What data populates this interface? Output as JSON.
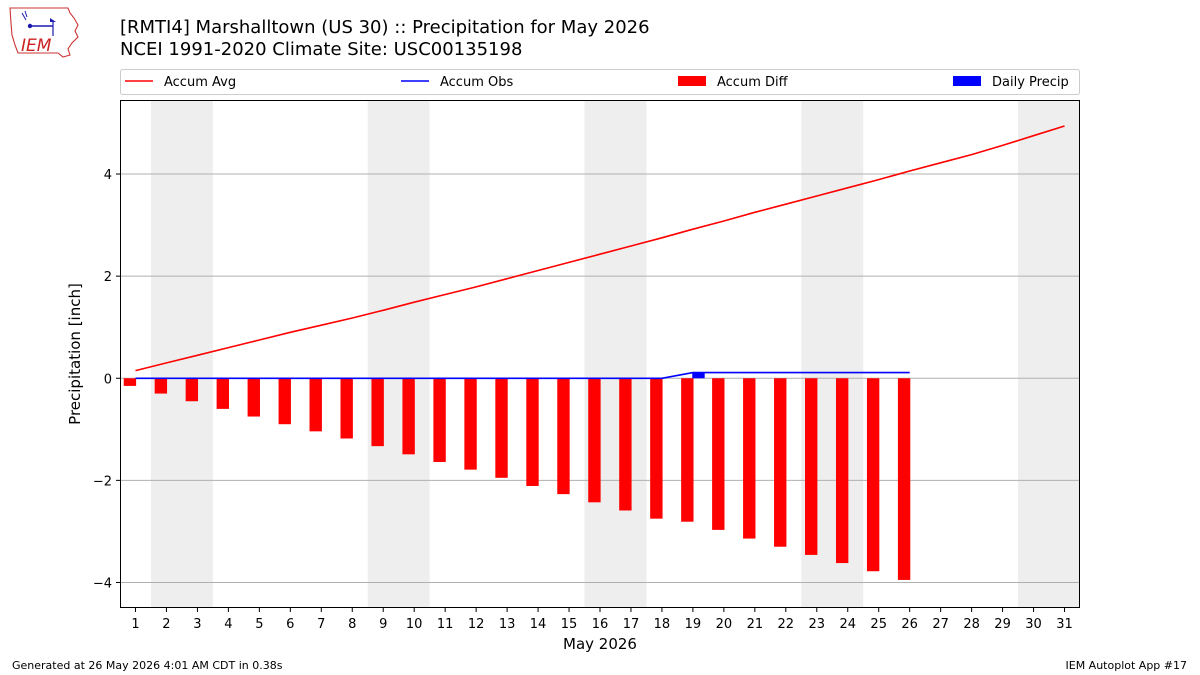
{
  "header": {
    "title": "[RMTI4] Marshalltown (US 30) :: Precipitation for May 2026",
    "subtitle": "NCEI 1991-2020 Climate Site: USC00135198"
  },
  "logo": {
    "text": "IEM"
  },
  "footer": {
    "generated": "Generated at 26 May 2026 4:01 AM CDT in 0.38s",
    "app": "IEM Autoplot App #17"
  },
  "chart_data": {
    "type": "bar",
    "xlabel": "May 2026",
    "ylabel": "Precipitation [inch]",
    "xlim": [
      0.5,
      31.5
    ],
    "ylim": [
      -4.5,
      5.45
    ],
    "yticks": [
      {
        "v": 4,
        "label": "4"
      },
      {
        "v": 2,
        "label": "2"
      },
      {
        "v": 0,
        "label": "0"
      },
      {
        "v": -2,
        "label": "−2"
      },
      {
        "v": -4,
        "label": "−4"
      }
    ],
    "days": [
      1,
      2,
      3,
      4,
      5,
      6,
      7,
      8,
      9,
      10,
      11,
      12,
      13,
      14,
      15,
      16,
      17,
      18,
      19,
      20,
      21,
      22,
      23,
      24,
      25,
      26,
      27,
      28,
      29,
      30,
      31
    ],
    "weekend_shading": [
      [
        1.5,
        3.5
      ],
      [
        8.5,
        10.5
      ],
      [
        15.5,
        17.5
      ],
      [
        22.5,
        24.5
      ],
      [
        29.5,
        31.5
      ]
    ],
    "grid": "horizontal",
    "legend": {
      "placement": "top",
      "items": [
        {
          "label": "Accum Avg",
          "kind": "line",
          "color": "#ff0000"
        },
        {
          "label": "Accum Obs",
          "kind": "line",
          "color": "#0000ff"
        },
        {
          "label": "Accum Diff",
          "kind": "bar",
          "color": "#ff0000"
        },
        {
          "label": "Daily Precip",
          "kind": "bar",
          "color": "#0000ff"
        }
      ]
    },
    "series": [
      {
        "name": "Accum Avg",
        "type": "line",
        "color": "#ff0000",
        "x": [
          1,
          2,
          3,
          4,
          5,
          6,
          7,
          8,
          9,
          10,
          11,
          12,
          13,
          14,
          15,
          16,
          17,
          18,
          19,
          20,
          21,
          22,
          23,
          24,
          25,
          26,
          27,
          28,
          29,
          30,
          31
        ],
        "values": [
          0.15,
          0.3,
          0.45,
          0.6,
          0.75,
          0.9,
          1.04,
          1.18,
          1.33,
          1.49,
          1.64,
          1.79,
          1.95,
          2.11,
          2.27,
          2.43,
          2.59,
          2.75,
          2.92,
          3.08,
          3.25,
          3.41,
          3.57,
          3.73,
          3.89,
          4.06,
          4.22,
          4.38,
          4.56,
          4.75,
          4.94
        ]
      },
      {
        "name": "Accum Obs",
        "type": "line",
        "color": "#0000ff",
        "x": [
          1,
          2,
          3,
          4,
          5,
          6,
          7,
          8,
          9,
          10,
          11,
          12,
          13,
          14,
          15,
          16,
          17,
          18,
          19,
          20,
          21,
          22,
          23,
          24,
          25,
          26
        ],
        "values": [
          0,
          0,
          0,
          0,
          0,
          0,
          0,
          0,
          0,
          0,
          0,
          0,
          0,
          0,
          0,
          0,
          0,
          0,
          0.11,
          0.11,
          0.11,
          0.11,
          0.11,
          0.11,
          0.11,
          0.11
        ]
      },
      {
        "name": "Accum Diff",
        "type": "bar",
        "color": "#ff0000",
        "x": [
          1,
          2,
          3,
          4,
          5,
          6,
          7,
          8,
          9,
          10,
          11,
          12,
          13,
          14,
          15,
          16,
          17,
          18,
          19,
          20,
          21,
          22,
          23,
          24,
          25,
          26
        ],
        "values": [
          -0.15,
          -0.3,
          -0.45,
          -0.6,
          -0.75,
          -0.9,
          -1.04,
          -1.18,
          -1.33,
          -1.49,
          -1.64,
          -1.79,
          -1.95,
          -2.11,
          -2.27,
          -2.43,
          -2.59,
          -2.75,
          -2.81,
          -2.97,
          -3.14,
          -3.3,
          -3.46,
          -3.62,
          -3.78,
          -3.95
        ]
      },
      {
        "name": "Daily Precip",
        "type": "bar",
        "color": "#0000ff",
        "x": [
          19
        ],
        "values": [
          0.11
        ]
      }
    ]
  }
}
